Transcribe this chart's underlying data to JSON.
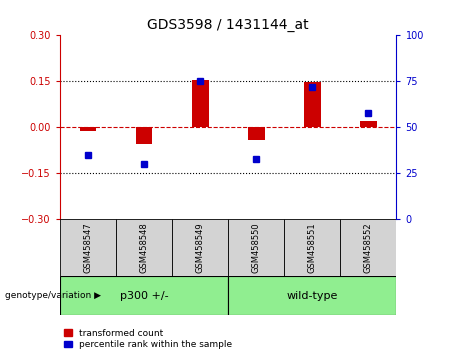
{
  "title": "GDS3598 / 1431144_at",
  "samples": [
    "GSM458547",
    "GSM458548",
    "GSM458549",
    "GSM458550",
    "GSM458551",
    "GSM458552"
  ],
  "red_values": [
    -0.01,
    -0.055,
    0.155,
    -0.04,
    0.148,
    0.02
  ],
  "blue_percentiles": [
    35,
    30,
    75,
    33,
    72,
    58
  ],
  "ylim_left": [
    -0.3,
    0.3
  ],
  "ylim_right": [
    0,
    100
  ],
  "yticks_left": [
    -0.3,
    -0.15,
    0,
    0.15,
    0.3
  ],
  "yticks_right": [
    0,
    25,
    50,
    75,
    100
  ],
  "group_label": "genotype/variation",
  "groups": [
    {
      "label": "p300 +/-",
      "start": 0,
      "end": 2
    },
    {
      "label": "wild-type",
      "start": 3,
      "end": 5
    }
  ],
  "legend_red": "transformed count",
  "legend_blue": "percentile rank within the sample",
  "red_color": "#cc0000",
  "blue_color": "#0000cc",
  "hline_red_color": "#cc0000",
  "dotted_color": "#000000",
  "bg_plot": "#ffffff",
  "bg_xtick": "#d3d3d3",
  "bg_group": "#90EE90",
  "bar_width": 0.3,
  "marker_size": 5,
  "title_fontsize": 10,
  "tick_fontsize": 7,
  "sample_fontsize": 6,
  "group_fontsize": 8,
  "legend_fontsize": 6.5
}
